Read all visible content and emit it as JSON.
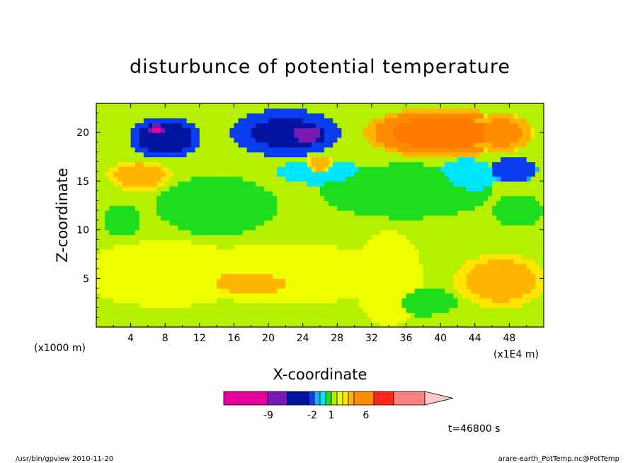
{
  "chart_data": {
    "type": "heatmap",
    "title": "disturbunce of potential temperature",
    "xlabel": "X-coordinate",
    "ylabel": "Z-coordinate",
    "x_unit_left": "(x1000 m)",
    "x_unit_right": "(x1E4 m)",
    "xlim": [
      0,
      52
    ],
    "ylim": [
      0,
      23
    ],
    "x_ticks": [
      "4",
      "8",
      "12",
      "16",
      "20",
      "24",
      "28",
      "32",
      "36",
      "40",
      "44",
      "48"
    ],
    "y_ticks": [
      "5",
      "10",
      "15",
      "20"
    ],
    "time_label": "t=46800 s",
    "colorbar": {
      "labels": [
        "-9",
        "-2",
        "1",
        "6"
      ],
      "colors": [
        "#e6009e",
        "#7a18b4",
        "#0014a0",
        "#0a3cf0",
        "#1eaaff",
        "#00e6ff",
        "#1edc1e",
        "#b4f000",
        "#f0ff00",
        "#ffe600",
        "#ffb400",
        "#ff8c00",
        "#ff7800",
        "#ff2814",
        "#ff8080",
        "#ffc8c8"
      ]
    },
    "field_blobs": [
      {
        "x": 8,
        "z": 19.5,
        "rx": 4,
        "rz": 2.2,
        "v": -7
      },
      {
        "x": 7,
        "z": 20.3,
        "rx": 1.2,
        "rz": 0.6,
        "v": -10
      },
      {
        "x": 22,
        "z": 20,
        "rx": 6.5,
        "rz": 2.4,
        "v": -6
      },
      {
        "x": 24.5,
        "z": 19.8,
        "rx": 2.2,
        "rz": 1.1,
        "v": -9
      },
      {
        "x": 48.5,
        "z": 16.2,
        "rx": 2.8,
        "rz": 1.3,
        "v": -5
      },
      {
        "x": 43,
        "z": 15.5,
        "rx": 3.5,
        "rz": 1.8,
        "v": -2
      },
      {
        "x": 26,
        "z": 16,
        "rx": 5,
        "rz": 1.3,
        "v": -2
      },
      {
        "x": 40,
        "z": 20,
        "rx": 9,
        "rz": 2.6,
        "v": 6
      },
      {
        "x": 47,
        "z": 20,
        "rx": 4,
        "rz": 2,
        "v": 5
      },
      {
        "x": 5,
        "z": 15.6,
        "rx": 3.8,
        "rz": 1.6,
        "v": 4
      },
      {
        "x": 26,
        "z": 16.8,
        "rx": 1.6,
        "rz": 0.8,
        "v": 4
      },
      {
        "x": 20,
        "z": 5,
        "rx": 9,
        "rz": 2.3,
        "v": 4
      },
      {
        "x": 47,
        "z": 4.8,
        "rx": 5.5,
        "rz": 2.8,
        "v": 4
      },
      {
        "x": 8,
        "z": 5.5,
        "rx": 10,
        "rz": 3.4,
        "v": 2
      },
      {
        "x": 22,
        "z": 5.5,
        "rx": 12,
        "rz": 3.2,
        "v": 2
      },
      {
        "x": 34,
        "z": 5,
        "rx": 4,
        "rz": 5,
        "v": 2
      },
      {
        "x": 14,
        "z": 12.5,
        "rx": 7,
        "rz": 3,
        "v": -1
      },
      {
        "x": 36,
        "z": 14,
        "rx": 10,
        "rz": 2.8,
        "v": -1
      },
      {
        "x": 3,
        "z": 11,
        "rx": 2.2,
        "rz": 1.6,
        "v": -1
      },
      {
        "x": 38,
        "z": 2.6,
        "rx": 4,
        "rz": 1.4,
        "v": -1
      },
      {
        "x": 49,
        "z": 12,
        "rx": 3,
        "rz": 1.6,
        "v": -1
      }
    ],
    "field_base": 0
  },
  "footer": {
    "left": "/usr/bin/gpview   2010-11-20",
    "right": "arare-earth_PotTemp.nc@PotTemp"
  }
}
